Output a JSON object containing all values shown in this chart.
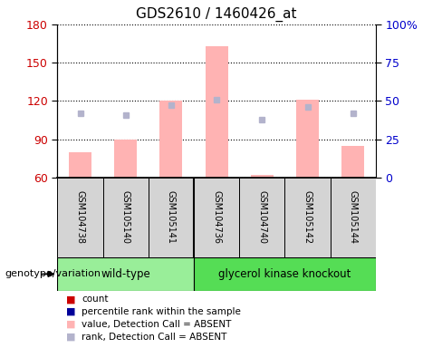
{
  "title": "GDS2610 / 1460426_at",
  "samples": [
    "GSM104738",
    "GSM105140",
    "GSM105141",
    "GSM104736",
    "GSM104740",
    "GSM105142",
    "GSM105144"
  ],
  "bar_values": [
    80,
    90,
    120,
    163,
    62,
    121,
    85
  ],
  "rank_values": [
    42,
    41,
    47,
    51,
    38,
    46,
    42
  ],
  "ylim_left": [
    60,
    180
  ],
  "ylim_right": [
    0,
    100
  ],
  "yticks_left": [
    60,
    90,
    120,
    150,
    180
  ],
  "yticks_right": [
    0,
    25,
    50,
    75,
    100
  ],
  "yticklabels_right": [
    "0",
    "25",
    "50",
    "75",
    "100%"
  ],
  "bar_color": "#ffb3b3",
  "rank_color": "#b3b3cc",
  "bar_bottom": 60,
  "group_wt_color": "#99ee99",
  "group_gk_color": "#55dd55",
  "sample_box_color": "#d4d4d4",
  "genotype_label": "genotype/variation",
  "legend_items": [
    {
      "label": "count",
      "color": "#cc0000"
    },
    {
      "label": "percentile rank within the sample",
      "color": "#000099"
    },
    {
      "label": "value, Detection Call = ABSENT",
      "color": "#ffb3b3"
    },
    {
      "label": "rank, Detection Call = ABSENT",
      "color": "#b3b3cc"
    }
  ],
  "background_color": "#ffffff",
  "tick_label_color_left": "#cc0000",
  "tick_label_color_right": "#0000cc"
}
